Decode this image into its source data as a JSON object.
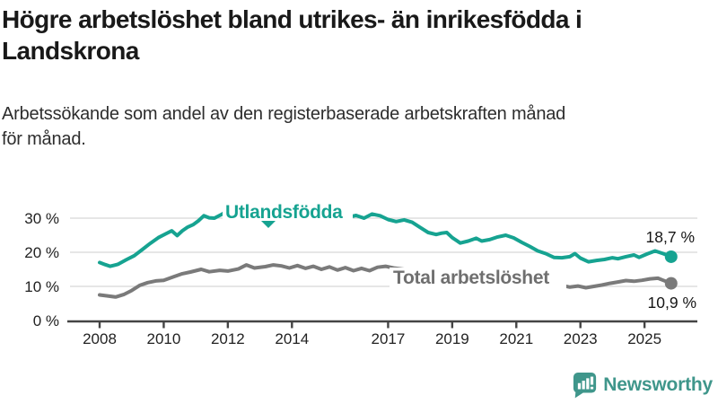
{
  "header": {
    "title_lines": [
      "Högre arbetslöshet bland utrikes- än inrikesfödda i",
      "Landskrona"
    ],
    "subtitle_lines": [
      "Arbetssökande som andel av den registerbaserade arbetskraften månad",
      "för månad."
    ]
  },
  "footer": {
    "brand": "Newsworthy"
  },
  "colors": {
    "series_foreign_born": "#16a391",
    "series_total": "#7a7a7a",
    "series_total_label": "#6f6f6f",
    "grid": "#d8d8d8",
    "axis": "#444444",
    "brand_teal": "#3f968b"
  },
  "chart_data": {
    "type": "line",
    "title": "Högre arbetslöshet bland utrikes- än inrikesfödda i Landskrona",
    "subtitle": "Arbetssökande som andel av den registerbaserade arbetskraften månad för månad.",
    "x_axis": {
      "tick_values": [
        2008,
        2010,
        2012,
        2014,
        2017,
        2019,
        2021,
        2023,
        2025
      ],
      "tick_labels": [
        "2008",
        "2010",
        "2012",
        "2014",
        "2017",
        "2019",
        "2021",
        "2023",
        "2025"
      ],
      "range": [
        2007.9,
        2026.5
      ]
    },
    "y_axis": {
      "tick_values": [
        0,
        10,
        20,
        30
      ],
      "tick_labels": [
        "0 %",
        "10 %",
        "20 %",
        "30 %"
      ],
      "range": [
        0,
        36
      ],
      "grid": true
    },
    "series": [
      {
        "name": "Utlandsfödda",
        "color": "#16a391",
        "end_label": "18,7 %",
        "end_value": 18.7,
        "points": [
          [
            2008.0,
            17.0
          ],
          [
            2008.17,
            16.4
          ],
          [
            2008.33,
            15.9
          ],
          [
            2008.58,
            16.5
          ],
          [
            2008.83,
            17.8
          ],
          [
            2009.08,
            19.0
          ],
          [
            2009.33,
            20.8
          ],
          [
            2009.58,
            22.6
          ],
          [
            2009.83,
            24.3
          ],
          [
            2010.08,
            25.5
          ],
          [
            2010.25,
            26.3
          ],
          [
            2010.42,
            24.9
          ],
          [
            2010.58,
            26.3
          ],
          [
            2010.75,
            27.4
          ],
          [
            2010.92,
            28.1
          ],
          [
            2011.08,
            29.2
          ],
          [
            2011.25,
            30.7
          ],
          [
            2011.42,
            30.1
          ],
          [
            2011.58,
            30.0
          ],
          [
            2011.83,
            31.2
          ],
          [
            2012.0,
            32.5
          ],
          [
            2012.25,
            32.0
          ],
          [
            2012.42,
            32.2
          ],
          [
            2012.75,
            33.3
          ],
          [
            2013.0,
            34.0
          ],
          [
            2013.25,
            33.5
          ],
          [
            2013.5,
            33.8
          ],
          [
            2013.75,
            33.2
          ],
          [
            2014.0,
            33.4
          ],
          [
            2014.25,
            32.7
          ],
          [
            2014.5,
            33.0
          ],
          [
            2014.75,
            32.2
          ],
          [
            2015.0,
            31.9
          ],
          [
            2015.25,
            31.3
          ],
          [
            2015.5,
            30.9
          ],
          [
            2015.75,
            30.3
          ],
          [
            2016.0,
            30.8
          ],
          [
            2016.25,
            30.0
          ],
          [
            2016.5,
            31.2
          ],
          [
            2016.75,
            30.7
          ],
          [
            2017.0,
            29.6
          ],
          [
            2017.25,
            29.0
          ],
          [
            2017.5,
            29.5
          ],
          [
            2017.75,
            28.8
          ],
          [
            2018.0,
            27.3
          ],
          [
            2018.25,
            25.8
          ],
          [
            2018.5,
            25.2
          ],
          [
            2018.67,
            25.6
          ],
          [
            2018.83,
            25.8
          ],
          [
            2019.0,
            24.3
          ],
          [
            2019.25,
            22.7
          ],
          [
            2019.5,
            23.3
          ],
          [
            2019.75,
            24.1
          ],
          [
            2019.92,
            23.3
          ],
          [
            2020.17,
            23.7
          ],
          [
            2020.42,
            24.5
          ],
          [
            2020.67,
            25.0
          ],
          [
            2020.92,
            24.2
          ],
          [
            2021.17,
            22.9
          ],
          [
            2021.42,
            21.7
          ],
          [
            2021.67,
            20.4
          ],
          [
            2021.92,
            19.6
          ],
          [
            2022.17,
            18.5
          ],
          [
            2022.42,
            18.4
          ],
          [
            2022.67,
            18.7
          ],
          [
            2022.83,
            19.6
          ],
          [
            2023.0,
            18.3
          ],
          [
            2023.25,
            17.2
          ],
          [
            2023.5,
            17.6
          ],
          [
            2023.75,
            17.9
          ],
          [
            2024.0,
            18.4
          ],
          [
            2024.17,
            18.1
          ],
          [
            2024.42,
            18.7
          ],
          [
            2024.67,
            19.2
          ],
          [
            2024.83,
            18.5
          ],
          [
            2025.08,
            19.5
          ],
          [
            2025.33,
            20.4
          ],
          [
            2025.58,
            19.6
          ],
          [
            2025.83,
            18.7
          ]
        ]
      },
      {
        "name": "Total arbetslöshet",
        "color": "#7a7a7a",
        "end_label": "10,9 %",
        "end_value": 10.9,
        "points": [
          [
            2008.0,
            7.5
          ],
          [
            2008.25,
            7.2
          ],
          [
            2008.5,
            6.9
          ],
          [
            2008.75,
            7.6
          ],
          [
            2009.0,
            8.8
          ],
          [
            2009.25,
            10.3
          ],
          [
            2009.5,
            11.1
          ],
          [
            2009.75,
            11.6
          ],
          [
            2010.0,
            11.8
          ],
          [
            2010.33,
            12.9
          ],
          [
            2010.58,
            13.7
          ],
          [
            2010.83,
            14.2
          ],
          [
            2011.17,
            15.0
          ],
          [
            2011.42,
            14.3
          ],
          [
            2011.75,
            14.7
          ],
          [
            2012.0,
            14.5
          ],
          [
            2012.33,
            15.1
          ],
          [
            2012.58,
            16.3
          ],
          [
            2012.83,
            15.4
          ],
          [
            2013.17,
            15.8
          ],
          [
            2013.42,
            16.3
          ],
          [
            2013.67,
            16.0
          ],
          [
            2013.92,
            15.4
          ],
          [
            2014.17,
            16.1
          ],
          [
            2014.42,
            15.3
          ],
          [
            2014.67,
            15.9
          ],
          [
            2014.92,
            15.0
          ],
          [
            2015.17,
            15.7
          ],
          [
            2015.42,
            14.8
          ],
          [
            2015.67,
            15.5
          ],
          [
            2015.92,
            14.6
          ],
          [
            2016.17,
            15.3
          ],
          [
            2016.42,
            14.6
          ],
          [
            2016.67,
            15.6
          ],
          [
            2016.92,
            15.9
          ],
          [
            2017.17,
            15.4
          ],
          [
            2017.5,
            15.0
          ],
          [
            2017.83,
            14.5
          ],
          [
            2018.17,
            13.8
          ],
          [
            2018.5,
            13.3
          ],
          [
            2019.0,
            12.5
          ],
          [
            2019.5,
            11.9
          ],
          [
            2020.0,
            12.3
          ],
          [
            2020.5,
            12.7
          ],
          [
            2021.0,
            12.0
          ],
          [
            2021.5,
            11.2
          ],
          [
            2022.0,
            10.7
          ],
          [
            2022.42,
            10.3
          ],
          [
            2022.67,
            9.8
          ],
          [
            2022.92,
            10.1
          ],
          [
            2023.17,
            9.6
          ],
          [
            2023.42,
            10.0
          ],
          [
            2023.67,
            10.4
          ],
          [
            2023.92,
            10.9
          ],
          [
            2024.17,
            11.3
          ],
          [
            2024.42,
            11.7
          ],
          [
            2024.67,
            11.5
          ],
          [
            2024.92,
            11.8
          ],
          [
            2025.17,
            12.2
          ],
          [
            2025.42,
            12.4
          ],
          [
            2025.58,
            11.8
          ],
          [
            2025.83,
            10.9
          ]
        ]
      }
    ],
    "legend_position": "inline-labels"
  }
}
